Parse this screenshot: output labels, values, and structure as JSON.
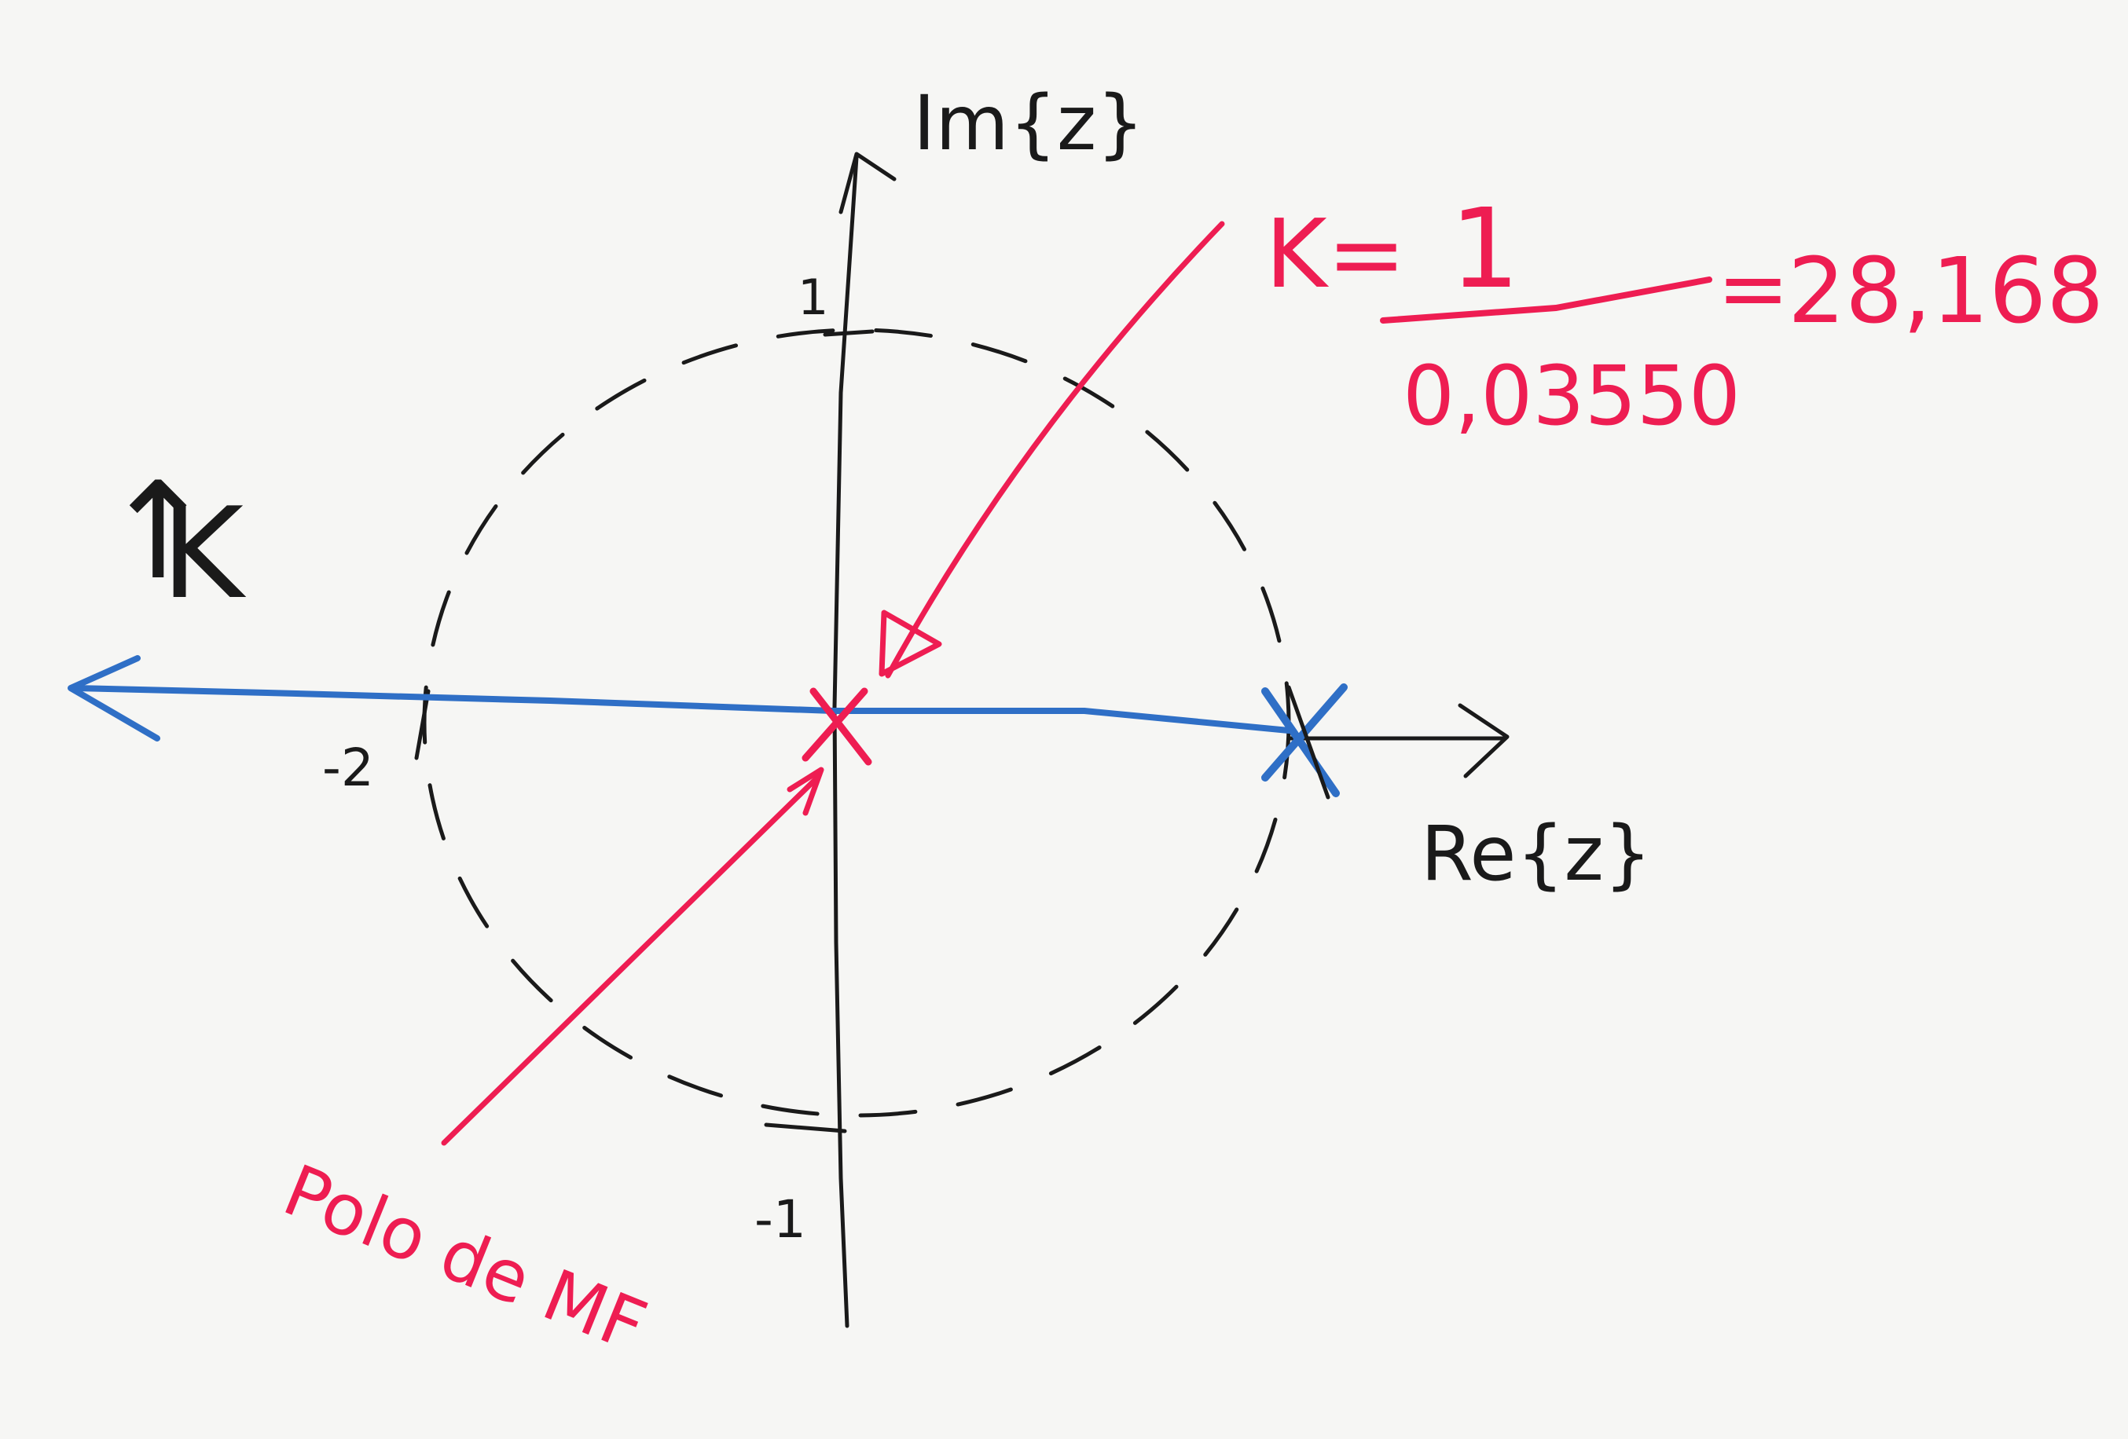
{
  "axes": {
    "imag_label": "Im{z}",
    "real_label": "Re{z}",
    "tick_imag_pos": "1",
    "tick_imag_neg": "-1",
    "tick_real_neg": "-2"
  },
  "gain_direction": {
    "arrow": "↑",
    "label": "K"
  },
  "gain_formula": {
    "prefix": "K=",
    "numerator": "1",
    "denominator": "0,03550",
    "equals": "=",
    "result": "28,168"
  },
  "pole_annotation": "Polo de MF",
  "colors": {
    "ink": "#1a1a1a",
    "red_marker": "#ee1d52",
    "blue_marker": "#2f6fc6"
  }
}
